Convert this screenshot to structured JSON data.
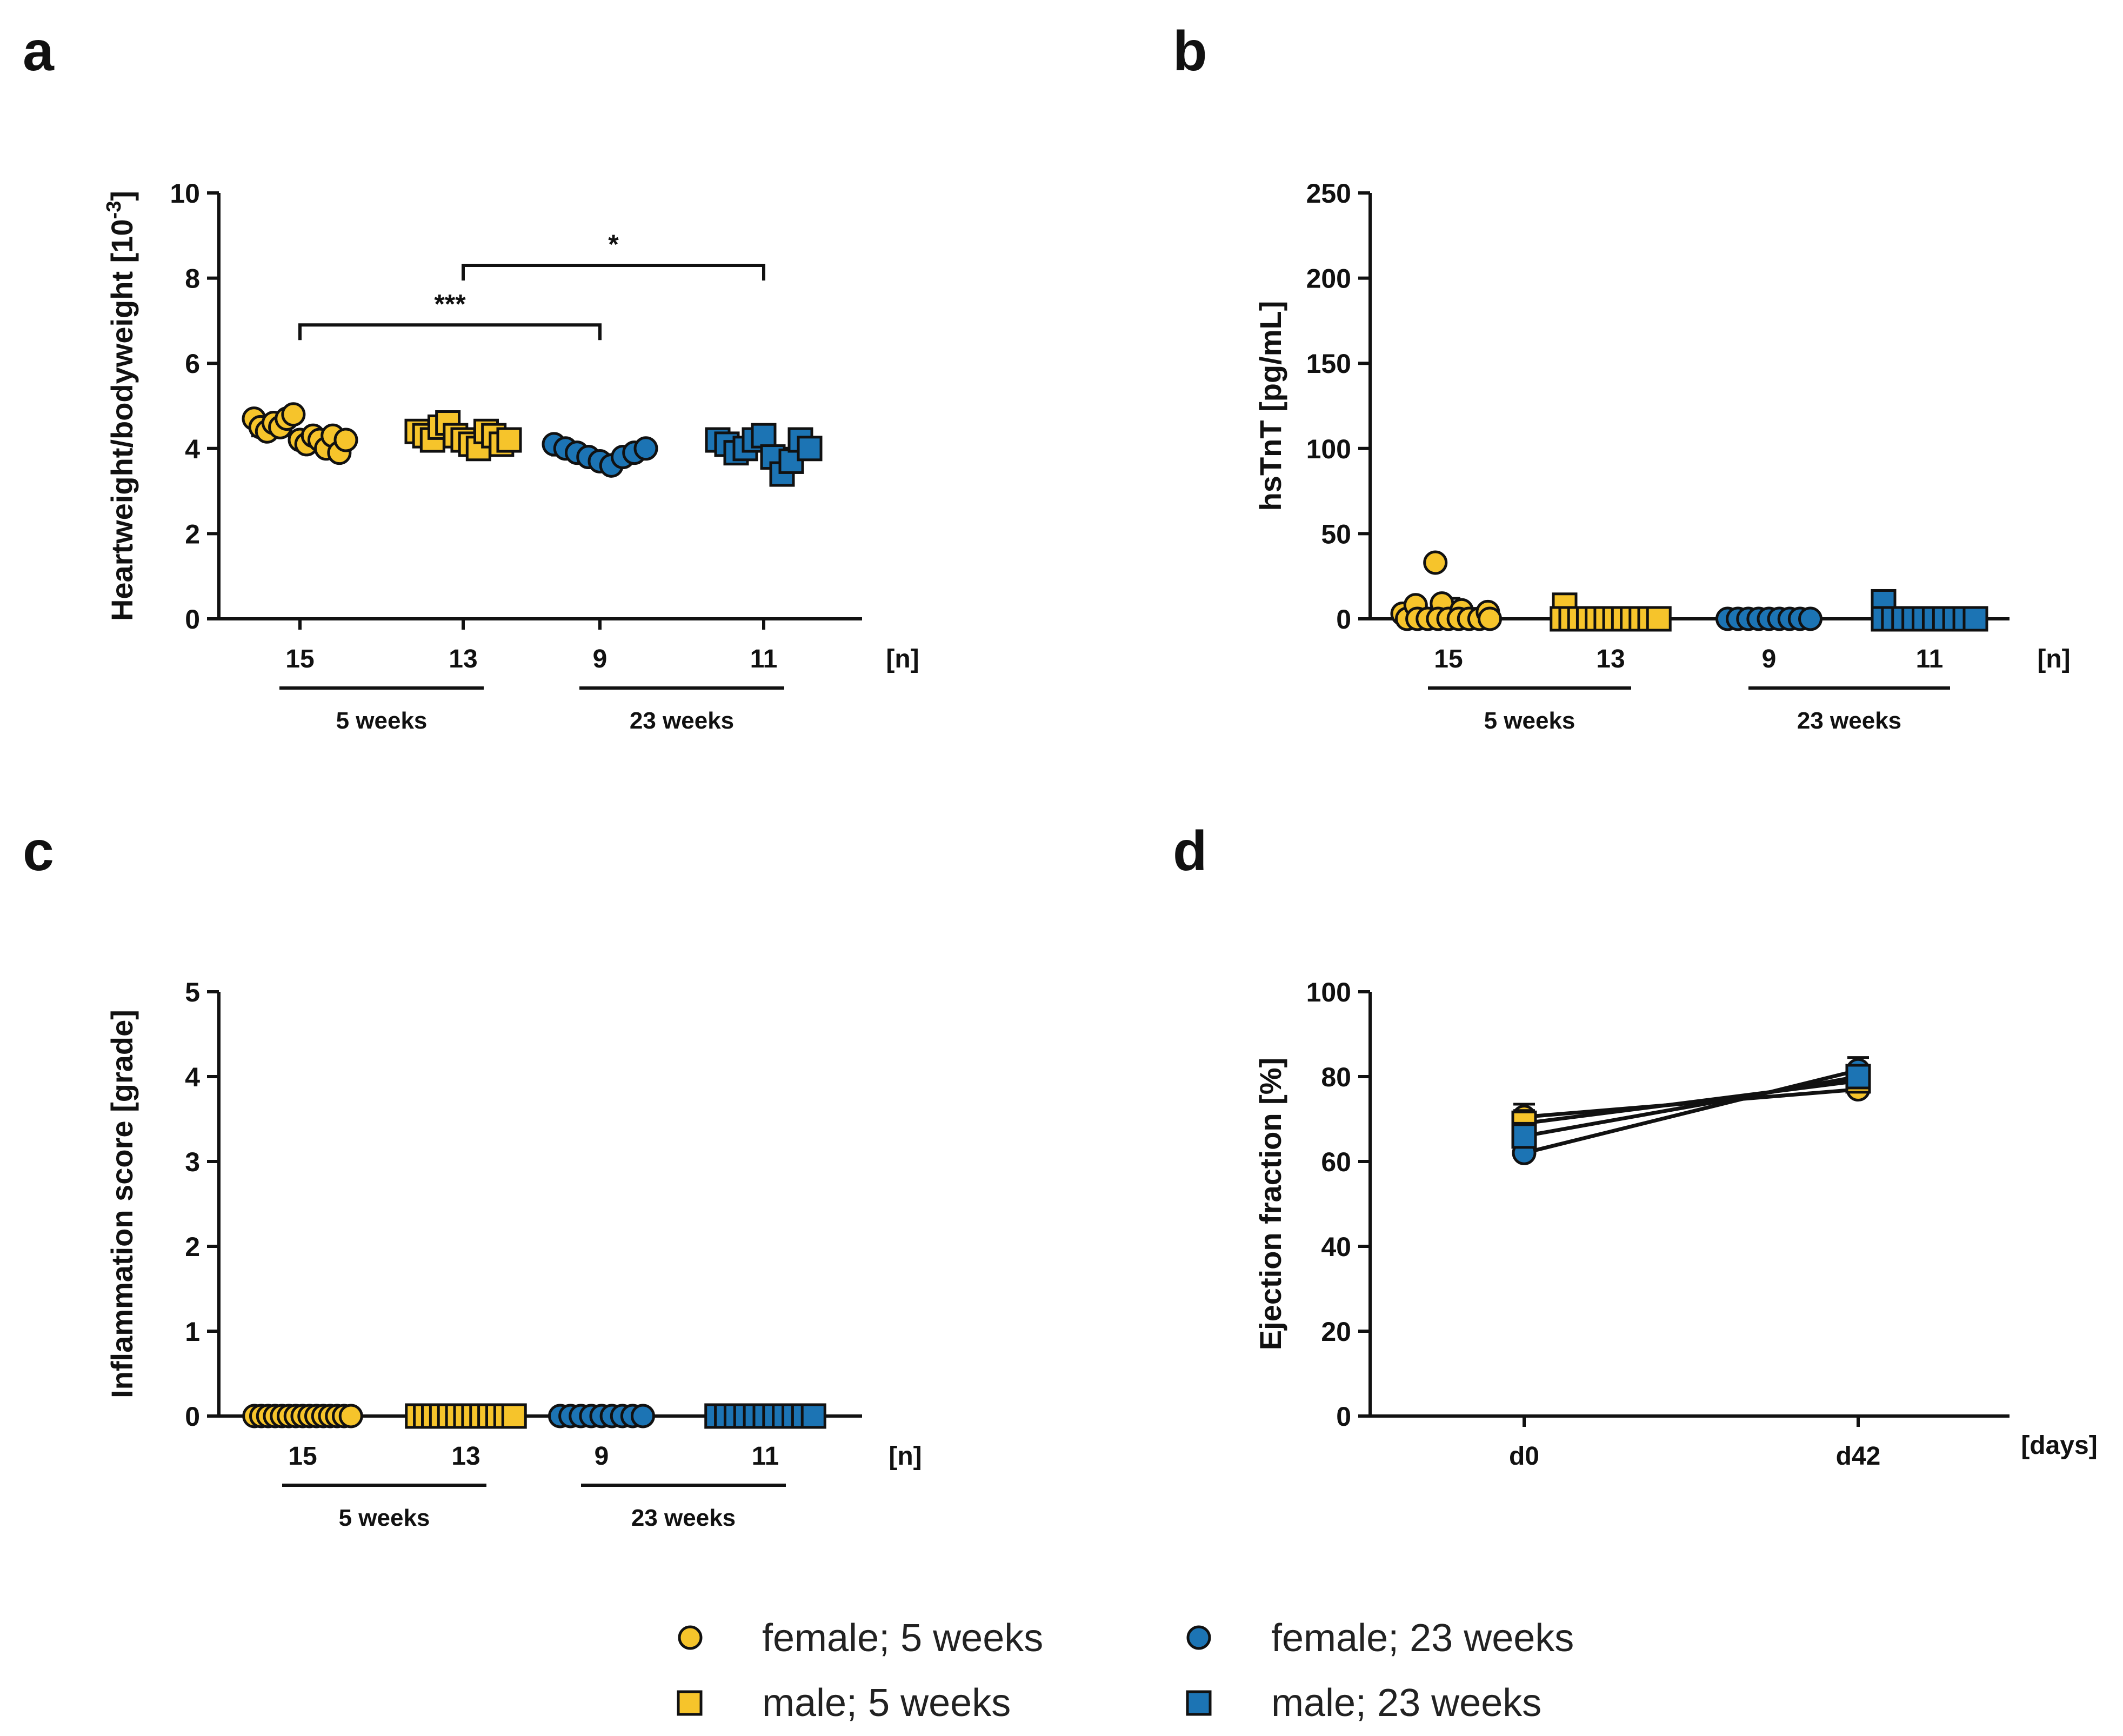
{
  "colors": {
    "yellow": "#F6C42B",
    "blue": "#1C74B4",
    "stroke": "#111111"
  },
  "legend": [
    {
      "label": "female; 5 weeks",
      "color": "#F6C42B",
      "shape": "circle"
    },
    {
      "label": "male; 5 weeks",
      "color": "#F6C42B",
      "shape": "square"
    },
    {
      "label": "female; 23 weeks",
      "color": "#1C74B4",
      "shape": "circle"
    },
    {
      "label": "male; 23 weeks",
      "color": "#1C74B4",
      "shape": "square"
    }
  ],
  "chart_data": [
    {
      "panel": "a",
      "type": "scatter",
      "ylabel": "Heartweight/bodyweight [10",
      "ylabel_sup": "-3",
      "ylabel_tail": "]",
      "ylim": [
        0,
        10
      ],
      "yticks": [
        0,
        2,
        4,
        6,
        8,
        10
      ],
      "n_label": "[n]",
      "categories": [
        "15",
        "13",
        "9",
        "11"
      ],
      "groups": [
        {
          "label": "5 weeks",
          "from": 0,
          "to": 1
        },
        {
          "label": "23 weeks",
          "from": 2,
          "to": 3
        }
      ],
      "series": [
        {
          "name": "female; 5 weeks",
          "color": "#F6C42B",
          "shape": "circle",
          "mean": 4.3,
          "values": [
            4.7,
            4.5,
            4.4,
            4.6,
            4.5,
            4.7,
            4.8,
            4.2,
            4.1,
            4.3,
            4.2,
            4.0,
            4.3,
            3.9,
            4.2
          ]
        },
        {
          "name": "male; 5 weeks",
          "color": "#F6C42B",
          "shape": "square",
          "mean": 4.3,
          "values": [
            4.4,
            4.3,
            4.2,
            4.5,
            4.6,
            4.3,
            4.2,
            4.1,
            4.0,
            4.4,
            4.3,
            4.1,
            4.2
          ]
        },
        {
          "name": "female; 23 weeks",
          "color": "#1C74B4",
          "shape": "circle",
          "mean": 3.85,
          "values": [
            4.1,
            4.0,
            3.9,
            3.8,
            3.7,
            3.6,
            3.8,
            3.9,
            4.0
          ]
        },
        {
          "name": "male; 23 weeks",
          "color": "#1C74B4",
          "shape": "square",
          "mean": 4.0,
          "values": [
            4.2,
            4.1,
            3.9,
            4.0,
            4.2,
            4.3,
            3.8,
            3.4,
            3.7,
            4.2,
            4.0
          ]
        }
      ],
      "significance": [
        {
          "from": 0,
          "to": 2,
          "y": 6.9,
          "label": "***"
        },
        {
          "from": 1,
          "to": 3,
          "y": 8.3,
          "label": "*"
        }
      ]
    },
    {
      "panel": "b",
      "type": "scatter",
      "ylabel": "hsTnT [pg/mL]",
      "ylim": [
        0,
        250
      ],
      "yticks": [
        0,
        50,
        100,
        150,
        200,
        250
      ],
      "n_label": "[n]",
      "categories": [
        "15",
        "13",
        "9",
        "11"
      ],
      "groups": [
        {
          "label": "5 weeks",
          "from": 0,
          "to": 1
        },
        {
          "label": "23 weeks",
          "from": 2,
          "to": 3
        }
      ],
      "series": [
        {
          "name": "female; 5 weeks",
          "color": "#F6C42B",
          "shape": "circle",
          "mean": 6,
          "err": 6,
          "values": [
            3,
            0,
            8,
            0,
            0,
            33,
            9,
            0,
            0,
            5,
            0,
            0,
            0,
            4,
            0
          ]
        },
        {
          "name": "male; 5 weeks",
          "color": "#F6C42B",
          "shape": "square",
          "mean": 1,
          "values": [
            8,
            0,
            0,
            0,
            0,
            0,
            0,
            0,
            0,
            0,
            0,
            0,
            0
          ]
        },
        {
          "name": "female; 23 weeks",
          "color": "#1C74B4",
          "shape": "circle",
          "mean": 0,
          "values": [
            0,
            0,
            0,
            0,
            0,
            0,
            0,
            0,
            0
          ]
        },
        {
          "name": "male; 23 weeks",
          "color": "#1C74B4",
          "shape": "square",
          "mean": 1,
          "values": [
            10,
            0,
            0,
            0,
            0,
            0,
            0,
            0,
            0,
            0,
            0
          ]
        }
      ]
    },
    {
      "panel": "c",
      "type": "scatter",
      "ylabel": "Inflammation score [grade]",
      "ylim": [
        0,
        5
      ],
      "yticks": [
        0,
        1,
        2,
        3,
        4,
        5
      ],
      "n_label": "[n]",
      "categories": [
        "15",
        "13",
        "9",
        "11"
      ],
      "groups": [
        {
          "label": "5 weeks",
          "from": 0,
          "to": 1
        },
        {
          "label": "23 weeks",
          "from": 2,
          "to": 3
        }
      ],
      "series": [
        {
          "name": "female; 5 weeks",
          "color": "#F6C42B",
          "shape": "circle",
          "mean": 0,
          "values": [
            0,
            0,
            0,
            0,
            0,
            0,
            0,
            0,
            0,
            0,
            0,
            0,
            0,
            0,
            0
          ]
        },
        {
          "name": "male; 5 weeks",
          "color": "#F6C42B",
          "shape": "square",
          "mean": 0,
          "values": [
            0,
            0,
            0,
            0,
            0,
            0,
            0,
            0,
            0,
            0,
            0,
            0,
            0
          ]
        },
        {
          "name": "female; 23 weeks",
          "color": "#1C74B4",
          "shape": "circle",
          "mean": 0,
          "values": [
            0,
            0,
            0,
            0,
            0,
            0,
            0,
            0,
            0
          ]
        },
        {
          "name": "male; 23 weeks",
          "color": "#1C74B4",
          "shape": "square",
          "mean": 0,
          "values": [
            0,
            0,
            0,
            0,
            0,
            0,
            0,
            0,
            0,
            0,
            0
          ]
        }
      ]
    },
    {
      "panel": "d",
      "type": "line",
      "ylabel": "Ejection  fraction [%]",
      "ylim": [
        0,
        100
      ],
      "yticks": [
        0,
        20,
        40,
        60,
        80,
        100
      ],
      "x": [
        "d0",
        "d42"
      ],
      "xunit": "[days]",
      "series": [
        {
          "name": "female; 5 weeks",
          "color": "#F6C42B",
          "shape": "circle",
          "values": [
            70.5,
            77
          ],
          "err": [
            3,
            1
          ]
        },
        {
          "name": "male; 5 weeks",
          "color": "#F6C42B",
          "shape": "square",
          "values": [
            69,
            79
          ],
          "err": [
            3,
            2
          ]
        },
        {
          "name": "female; 23 weeks",
          "color": "#1C74B4",
          "shape": "circle",
          "values": [
            62,
            81.5
          ],
          "err": [
            2,
            3
          ]
        },
        {
          "name": "male; 23 weeks",
          "color": "#1C74B4",
          "shape": "square",
          "values": [
            66,
            80
          ],
          "err": [
            3,
            2
          ]
        }
      ]
    }
  ]
}
